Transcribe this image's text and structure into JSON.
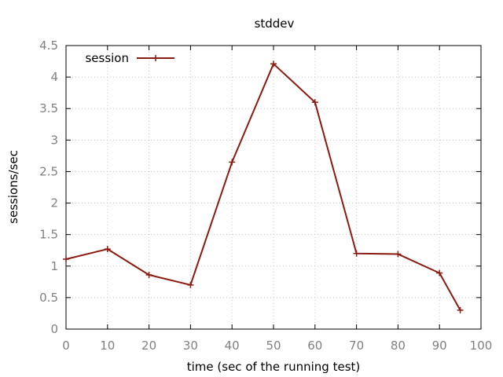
{
  "chart_data": {
    "type": "line",
    "title": "stddev",
    "xlabel": "time (sec of the running test)",
    "ylabel": "sessions/sec",
    "xlim": [
      0,
      100
    ],
    "ylim": [
      0,
      4.5
    ],
    "x_ticks": [
      "0",
      "10",
      "20",
      "30",
      "40",
      "50",
      "60",
      "70",
      "80",
      "90",
      "100"
    ],
    "y_ticks": [
      "0",
      "0.5",
      "1",
      "1.5",
      "2",
      "2.5",
      "3",
      "3.5",
      "4",
      "4.5"
    ],
    "grid": true,
    "legend_position": "top-left",
    "series": [
      {
        "name": "session",
        "color": "#8b1a10",
        "marker": "plus",
        "x": [
          0,
          10,
          20,
          30,
          40,
          50,
          60,
          70,
          80,
          90,
          95
        ],
        "y": [
          1.11,
          1.27,
          0.86,
          0.7,
          2.65,
          4.21,
          3.6,
          1.2,
          1.19,
          0.89,
          0.3
        ]
      }
    ]
  }
}
